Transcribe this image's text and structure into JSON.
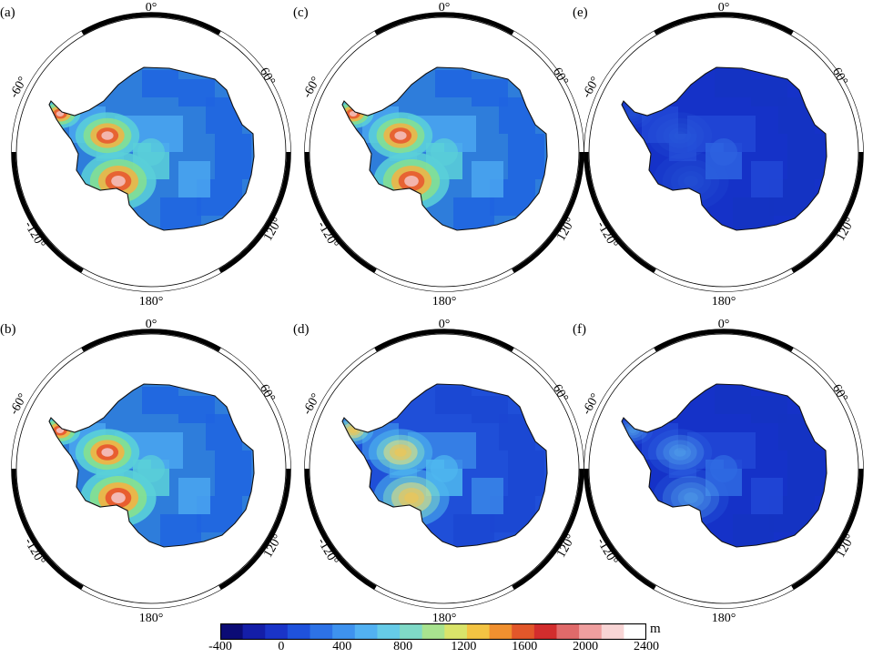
{
  "panels": [
    {
      "label": "(a)",
      "palette": [
        "#2e7ddb",
        "#1e64e0",
        "#4aa6f0",
        "#5ad0d8",
        "#86e08f",
        "#f3b342",
        "#e8542e",
        "#f4c3c3"
      ],
      "level": 0.85
    },
    {
      "label": "(b)",
      "palette": [
        "#2e7ddb",
        "#1e64e0",
        "#4aa6f0",
        "#5ad0d8",
        "#86e08f",
        "#f3b342",
        "#e8542e",
        "#f4c3c3"
      ],
      "level": 0.9
    },
    {
      "label": "(c)",
      "palette": [
        "#2e7ddb",
        "#1e64e0",
        "#4aa6f0",
        "#5ad0d8",
        "#86e08f",
        "#f3b342",
        "#e8542e",
        "#f4c3c3"
      ],
      "level": 0.85
    },
    {
      "label": "(d)",
      "palette": [
        "#1f4fd8",
        "#1b46d2",
        "#3a86e8",
        "#4fb8ef",
        "#7fd9c7",
        "#e8e07a",
        "#f2c550",
        "#f2c550"
      ],
      "level": 0.55
    },
    {
      "label": "(e)",
      "palette": [
        "#1532c8",
        "#1434c2",
        "#2148d6",
        "#2d63e0",
        "#2d63e0",
        "#2d63e0",
        "#2d63e0",
        "#2d63e0"
      ],
      "level": 0.15
    },
    {
      "label": "(f)",
      "palette": [
        "#1532c8",
        "#1434c2",
        "#2148d6",
        "#2f6be2",
        "#5ab2ef",
        "#5ab2ef",
        "#5ab2ef",
        "#5ab2ef"
      ],
      "level": 0.25
    }
  ],
  "angle_labels": {
    "top": "0°",
    "right_upper": "60°",
    "right_lower": "120°",
    "bottom": "180°",
    "left_lower": "-120°",
    "left_upper": "-60°"
  },
  "colorbar": {
    "unit": "m",
    "ticks": [
      "-400",
      "0",
      "400",
      "800",
      "1200",
      "1600",
      "2000",
      "2400"
    ],
    "colors": [
      "#0b0b75",
      "#141ea8",
      "#1a34c8",
      "#1f52dc",
      "#2d72e6",
      "#3e92ee",
      "#52b1f2",
      "#66cbe8",
      "#7fd9c7",
      "#a8e38f",
      "#d9e46a",
      "#f3c443",
      "#f0902f",
      "#e2572a",
      "#d22d2d",
      "#e06a6a",
      "#ef9f9f",
      "#f8d5d5",
      "#ffffff"
    ]
  }
}
